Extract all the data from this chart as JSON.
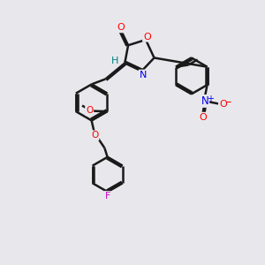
{
  "background_color": "#e8e8ec",
  "bond_color": "#1a1a1a",
  "bond_width": 1.8,
  "label_colors": {
    "O": "#ff0000",
    "N": "#0000ee",
    "F": "#cc00cc",
    "H": "#008080",
    "plus": "#0000ee",
    "minus": "#ff0000"
  },
  "figsize": [
    3.0,
    3.0
  ],
  "dpi": 100
}
